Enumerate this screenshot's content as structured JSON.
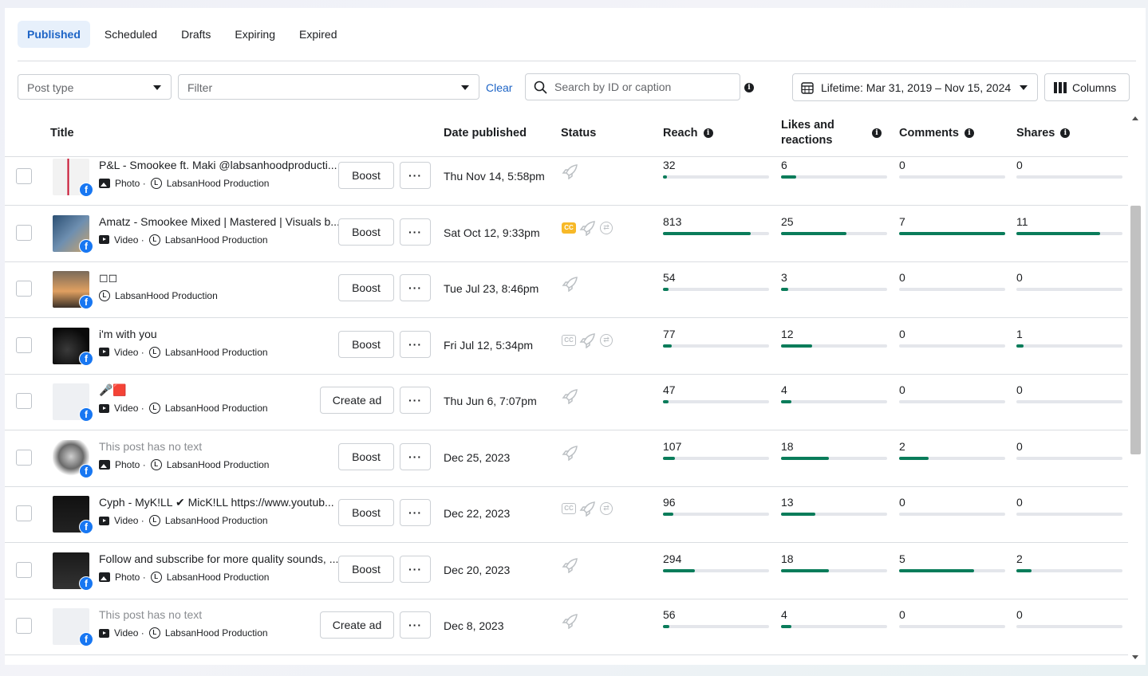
{
  "tabs": [
    "Published",
    "Scheduled",
    "Drafts",
    "Expiring",
    "Expired"
  ],
  "toolbar": {
    "post_type_placeholder": "Post type",
    "filter_placeholder": "Filter",
    "clear_label": "Clear",
    "search_placeholder": "Search by ID or caption",
    "date_range_label": "Lifetime: Mar 31, 2019 – Nov 15, 2024",
    "columns_label": "Columns"
  },
  "columns": {
    "title": "Title",
    "date": "Date published",
    "status": "Status",
    "reach": "Reach",
    "likes": "Likes and reactions",
    "comments": "Comments",
    "shares": "Shares"
  },
  "page_name": "LabsanHood Production",
  "buttons": {
    "boost": "Boost",
    "create_ad": "Create ad",
    "more": "···"
  },
  "colors": {
    "accent": "#1d64c6",
    "bar": "#0a7c5a",
    "captions": "#f7b928",
    "facebook": "#1877f2"
  },
  "rows": [
    {
      "title": "P&L - Smookee ft. Maki @labsanhoodproducti...",
      "type": "Photo ·",
      "action": "Boost",
      "date": "Thu Nov 14, 5:58pm",
      "cc": "none",
      "reach": "32",
      "reach_pct": 0.03,
      "likes": "6",
      "likes_pct": 0.14,
      "comments": "0",
      "comments_pct": 0,
      "shares": "0",
      "shares_pct": 0
    },
    {
      "title": "Amatz - Smookee Mixed | Mastered | Visuals b...",
      "type": "Video ·",
      "action": "Boost",
      "date": "Sat Oct 12, 9:33pm",
      "cc": "on",
      "reach": "813",
      "reach_pct": 0.83,
      "likes": "25",
      "likes_pct": 0.62,
      "comments": "7",
      "comments_pct": 1.0,
      "shares": "11",
      "shares_pct": 0.79
    },
    {
      "title": "◻◻",
      "type": "",
      "action": "Boost",
      "date": "Tue Jul 23, 8:46pm",
      "cc": "none",
      "reach": "54",
      "reach_pct": 0.05,
      "likes": "3",
      "likes_pct": 0.07,
      "comments": "0",
      "comments_pct": 0,
      "shares": "0",
      "shares_pct": 0
    },
    {
      "title": "i'm with you",
      "type": "Video ·",
      "action": "Boost",
      "date": "Fri Jul 12, 5:34pm",
      "cc": "off",
      "reach": "77",
      "reach_pct": 0.08,
      "likes": "12",
      "likes_pct": 0.29,
      "comments": "0",
      "comments_pct": 0,
      "shares": "1",
      "shares_pct": 0.07
    },
    {
      "title": "🎤🟥",
      "type": "Video ·",
      "action": "Create ad",
      "date": "Thu Jun 6, 7:07pm",
      "cc": "none",
      "reach": "47",
      "reach_pct": 0.05,
      "likes": "4",
      "likes_pct": 0.1,
      "comments": "0",
      "comments_pct": 0,
      "shares": "0",
      "shares_pct": 0
    },
    {
      "title": "This post has no text",
      "type": "Photo ·",
      "action": "Boost",
      "date": "Dec 25, 2023",
      "cc": "none",
      "muted": true,
      "reach": "107",
      "reach_pct": 0.11,
      "likes": "18",
      "likes_pct": 0.45,
      "comments": "2",
      "comments_pct": 0.28,
      "shares": "0",
      "shares_pct": 0
    },
    {
      "title": "Cyph - MyK!LL ✔ MicK!LL https://www.youtub...",
      "type": "Video ·",
      "action": "Boost",
      "date": "Dec 22, 2023",
      "cc": "off",
      "reach": "96",
      "reach_pct": 0.1,
      "likes": "13",
      "likes_pct": 0.32,
      "comments": "0",
      "comments_pct": 0,
      "shares": "0",
      "shares_pct": 0
    },
    {
      "title": "Follow and subscribe for more quality sounds, ...",
      "type": "Photo ·",
      "action": "Boost",
      "date": "Dec 20, 2023",
      "cc": "none",
      "reach": "294",
      "reach_pct": 0.3,
      "likes": "18",
      "likes_pct": 0.45,
      "comments": "5",
      "comments_pct": 0.71,
      "shares": "2",
      "shares_pct": 0.14
    },
    {
      "title": "This post has no text",
      "type": "Video ·",
      "action": "Create ad",
      "date": "Dec 8, 2023",
      "cc": "none",
      "muted": true,
      "reach": "56",
      "reach_pct": 0.06,
      "likes": "4",
      "likes_pct": 0.1,
      "comments": "0",
      "comments_pct": 0,
      "shares": "0",
      "shares_pct": 0
    }
  ]
}
